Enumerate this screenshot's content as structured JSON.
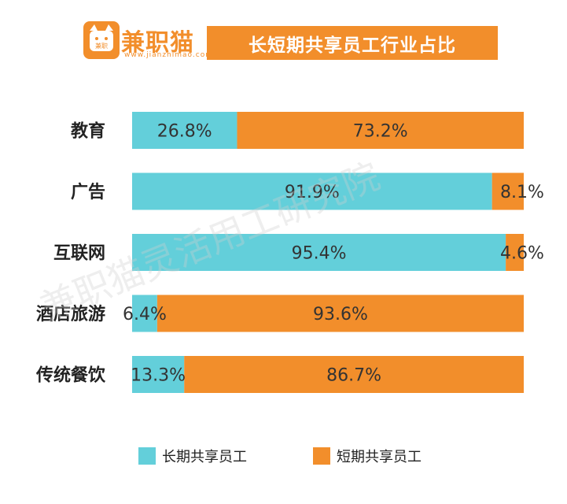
{
  "brand": {
    "logo_text": "兼职猫",
    "logo_sub": "www.jianzhimao.com",
    "logo_badge": "兼职"
  },
  "watermark": "兼职猫灵活用工研究院",
  "chart_data": {
    "type": "bar",
    "orientation": "horizontal",
    "stacked": true,
    "title": "长短期共享员工行业占比",
    "categories": [
      "教育",
      "广告",
      "互联网",
      "酒店旅游",
      "传统餐饮"
    ],
    "series": [
      {
        "name": "长期共享员工",
        "color": "#63CFDA",
        "values": [
          26.8,
          91.9,
          95.4,
          6.4,
          13.3
        ],
        "labels": [
          "26.8%",
          "91.9%",
          "95.4%",
          "6.4%",
          "13.3%"
        ]
      },
      {
        "name": "短期共享员工",
        "color": "#F28E2B",
        "values": [
          73.2,
          8.1,
          4.6,
          93.6,
          86.7
        ],
        "labels": [
          "73.2%",
          "8.1%",
          "4.6%",
          "93.6%",
          "86.7%"
        ]
      }
    ],
    "xlim": [
      0,
      100
    ],
    "grid": false,
    "legend": "bottom"
  }
}
